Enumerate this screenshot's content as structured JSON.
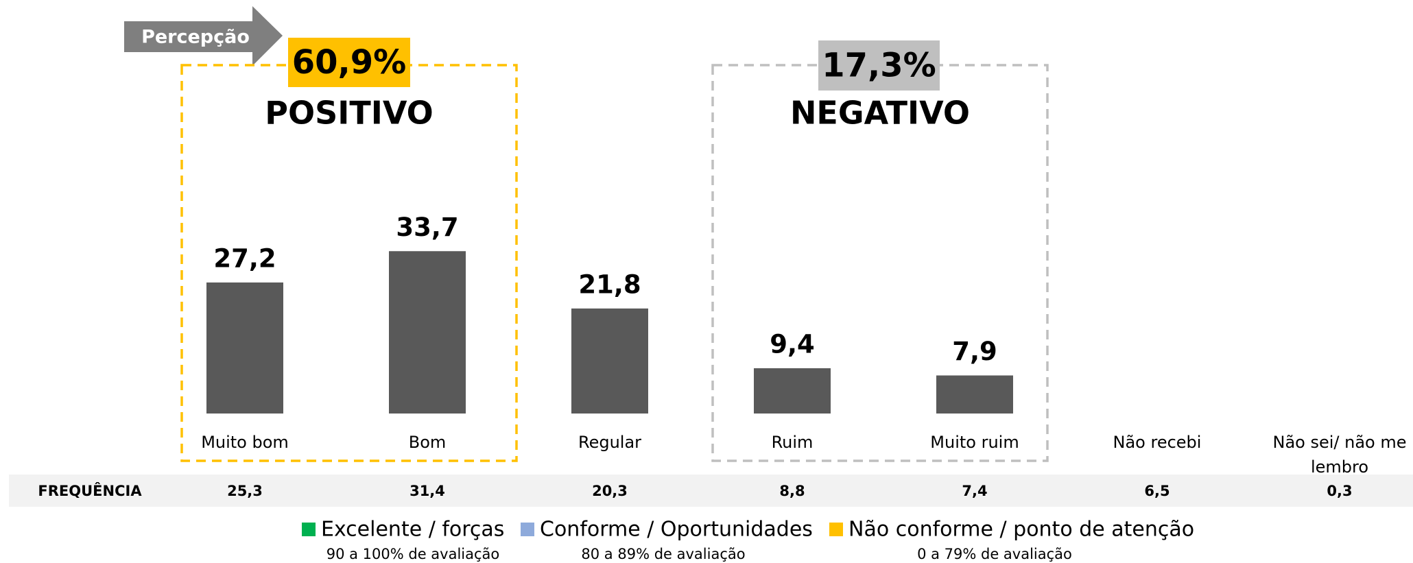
{
  "chart_data": {
    "type": "bar",
    "badge": "Percepção",
    "categories": [
      "Muito bom",
      "Bom",
      "Regular",
      "Ruim",
      "Muito ruim",
      "Não recebi",
      "Não sei/ não me lembro"
    ],
    "values": [
      27.2,
      33.7,
      21.8,
      9.4,
      7.9,
      null,
      null
    ],
    "value_labels": [
      "27,2",
      "33,7",
      "21,8",
      "9,4",
      "7,9",
      null,
      null
    ],
    "color": "#595959",
    "ylim": [
      0,
      40
    ],
    "groups": [
      {
        "title": "POSITIVO",
        "total": "60,9%",
        "color": "#ffc000"
      },
      {
        "title": "NEGATIVO",
        "total": "17,3%",
        "color": "#bfbfbf"
      }
    ],
    "frequency": {
      "label": "FREQUÊNCIA",
      "values": [
        "25,3",
        "31,4",
        "20,3",
        "8,8",
        "7,4",
        "6,5",
        "0,3"
      ]
    },
    "legend": [
      {
        "name": "Excelente / forças",
        "color": "#00b050",
        "note": "90 a 100% de avaliação"
      },
      {
        "name": "Conforme / Oportunidades",
        "color": "#8eaadb",
        "note": "80 a 89% de avaliação"
      },
      {
        "name": "Não conforme / ponto de atenção",
        "color": "#ffc000",
        "note": "0 a 79% de avaliação"
      }
    ]
  }
}
